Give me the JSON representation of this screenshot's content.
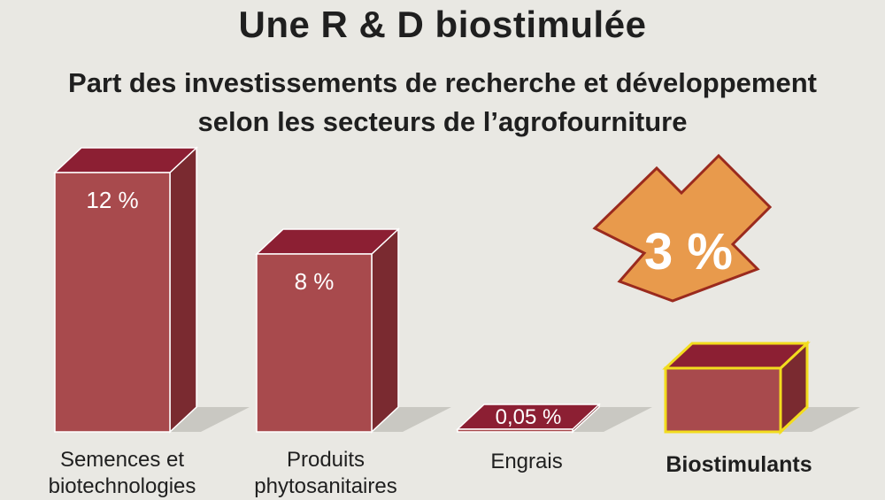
{
  "title": "Une R & D biostimulée",
  "subtitle_line1": "Part des investissements de recherche et développement",
  "subtitle_line2": "selon les secteurs de l’agrofourniture",
  "colors": {
    "bar_front": "#a84a4d",
    "bar_top": "#8c1f33",
    "bar_side": "#7a2a30",
    "highlight_outline": "#f2dc1e",
    "arrow": "#e89a4c",
    "arrow_outline": "#9a2a1e"
  },
  "chart_data": {
    "type": "bar",
    "categories": [
      "Semences et biotechnologies",
      "Produits phytosanitaires",
      "Engrais",
      "Biostimulants"
    ],
    "values": [
      12,
      8,
      0.05,
      3
    ],
    "unit": "%",
    "data_labels": [
      "12 %",
      "8 %",
      "0,05 %",
      "3 %"
    ],
    "highlighted_category": "Biostimulants",
    "grid": false,
    "legend": "none"
  },
  "labels": {
    "cat1_line1": "Semences et",
    "cat1_line2": "biotechnologies",
    "cat2_line1": "Produits",
    "cat2_line2": "phytosanitaires",
    "cat3_line1": "Engrais",
    "cat4_line1": "Biostimulants"
  }
}
